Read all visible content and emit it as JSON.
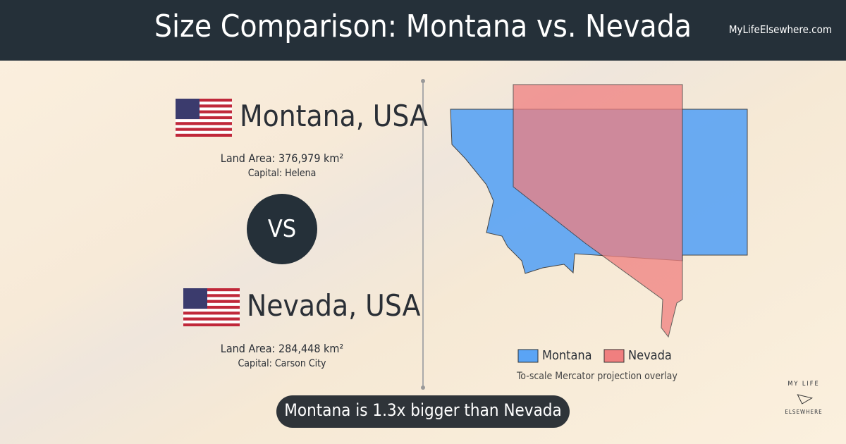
{
  "header": {
    "title": "Size Comparison: Montana vs. Nevada",
    "site": "MyLifeElsewhere.com"
  },
  "places": [
    {
      "name": "Montana, USA",
      "land_area": "Land Area: 376,979 km²",
      "capital": "Capital: Helena"
    },
    {
      "name": "Nevada, USA",
      "land_area": "Land Area: 284,448 km²",
      "capital": "Capital: Carson City"
    }
  ],
  "vs": "VS",
  "legend": [
    {
      "name": "Montana",
      "color": "#5aa4f5"
    },
    {
      "name": "Nevada",
      "color": "#f07f7f"
    }
  ],
  "caption": "To-scale Mercator projection overlay",
  "result": "Montana is 1.3x bigger than Nevada",
  "logo": {
    "top": "MY LIFE",
    "bottom": "ELSEWHERE"
  }
}
